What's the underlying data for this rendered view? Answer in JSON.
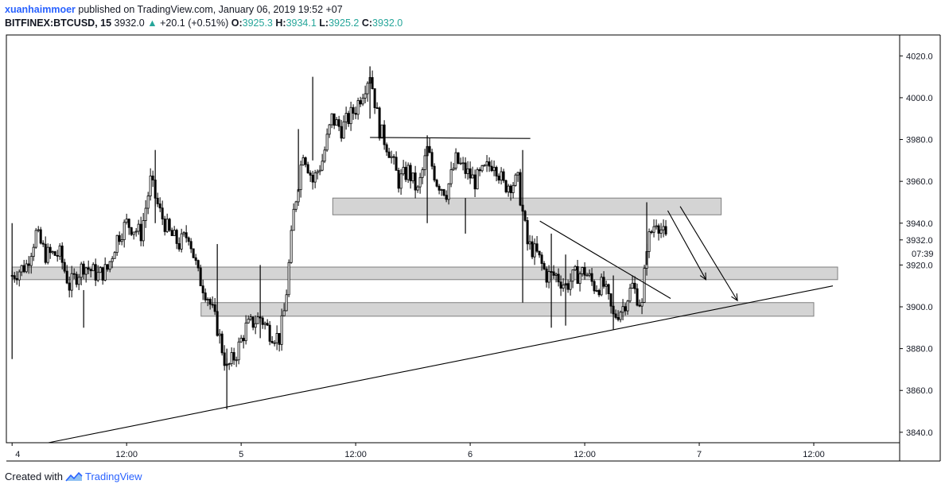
{
  "header": {
    "author": "xuanhaimmoer",
    "published_text": "published on TradingView.com, January 06, 2019 19:52 +07",
    "symbol": "BITFINEX:BTCUSD, 15",
    "last_price": "3932.0",
    "change_arrow": "▲",
    "change": "+20.1 (+0.51%)",
    "ohlc": {
      "o_label": "O:",
      "o_value": "3925.3",
      "h_label": "H:",
      "h_value": "3934.1",
      "l_label": "L:",
      "l_value": "3925.2",
      "c_label": "C:",
      "c_value": "3932.0"
    }
  },
  "footer": {
    "created_with": "Created with",
    "brand": "TradingView",
    "brand_icon": "tradingview-logo-icon"
  },
  "colors": {
    "candle": "#000000",
    "zone_fill": "#d4d4d4",
    "zone_border": "#7f7f7f",
    "up_text": "#26a69a",
    "brand": "#2962ff"
  },
  "chart_data": {
    "type": "candlestick",
    "symbol": "BITFINEX:BTCUSD",
    "interval": "15",
    "ylim": [
      3835,
      4030
    ],
    "y_ticks": [
      "4020.0",
      "4000.0",
      "3980.0",
      "3960.0",
      "3940.0",
      "3920.0",
      "3900.0",
      "3880.0",
      "3860.0",
      "3840.0"
    ],
    "y_tick_values": [
      4020,
      4000,
      3980,
      3960,
      3940,
      3920,
      3900,
      3880,
      3860,
      3840
    ],
    "x_ticks": [
      "4",
      "12:00",
      "5",
      "12:00",
      "6",
      "12:00",
      "7",
      "12:00"
    ],
    "x_tick_hours": [
      0,
      12,
      24,
      36,
      48,
      60,
      72,
      84
    ],
    "xlim_hours": [
      -0.6,
      93
    ],
    "last_price_label": "3932.0",
    "countdown_label": "07:39",
    "price_path": [
      [
        0,
        3915
      ],
      [
        1.5,
        3920
      ],
      [
        2.5,
        3935
      ],
      [
        3.5,
        3925
      ],
      [
        5,
        3925
      ],
      [
        6,
        3910
      ],
      [
        7.5,
        3920
      ],
      [
        9,
        3915
      ],
      [
        10,
        3918
      ],
      [
        11,
        3933
      ],
      [
        12,
        3940
      ],
      [
        13.5,
        3935
      ],
      [
        14.5,
        3960
      ],
      [
        15.5,
        3945
      ],
      [
        16.5,
        3935
      ],
      [
        17.5,
        3930
      ],
      [
        18.5,
        3935
      ],
      [
        19.5,
        3915
      ],
      [
        20.5,
        3905
      ],
      [
        21.5,
        3890
      ],
      [
        22.5,
        3870
      ],
      [
        23.5,
        3878
      ],
      [
        24.5,
        3890
      ],
      [
        26,
        3895
      ],
      [
        27,
        3888
      ],
      [
        28,
        3885
      ],
      [
        28.6,
        3900
      ],
      [
        29.5,
        3945
      ],
      [
        30.5,
        3975
      ],
      [
        31.5,
        3960
      ],
      [
        32.5,
        3970
      ],
      [
        33.5,
        3990
      ],
      [
        34.5,
        3985
      ],
      [
        36,
        3995
      ],
      [
        37.5,
        4012
      ],
      [
        38.5,
        3985
      ],
      [
        39.5,
        3975
      ],
      [
        40.5,
        3960
      ],
      [
        41.5,
        3965
      ],
      [
        42.5,
        3955
      ],
      [
        43.5,
        3975
      ],
      [
        44.5,
        3960
      ],
      [
        45.5,
        3955
      ],
      [
        46.5,
        3970
      ],
      [
        47.5,
        3965
      ],
      [
        48.5,
        3960
      ],
      [
        49.5,
        3965
      ],
      [
        50.5,
        3970
      ],
      [
        51.5,
        3958
      ],
      [
        53,
        3960
      ],
      [
        54,
        3930
      ],
      [
        55,
        3925
      ],
      [
        56,
        3915
      ],
      [
        57,
        3915
      ],
      [
        58,
        3910
      ],
      [
        59,
        3915
      ],
      [
        60,
        3917
      ],
      [
        61,
        3910
      ],
      [
        62,
        3910
      ],
      [
        63,
        3895
      ],
      [
        64,
        3900
      ],
      [
        65,
        3910
      ],
      [
        66,
        3900
      ],
      [
        66.5,
        3930
      ],
      [
        67.5,
        3942
      ],
      [
        68.5,
        3932
      ]
    ],
    "spikes": [
      [
        0,
        3940,
        3875
      ],
      [
        7.5,
        3908,
        3890
      ],
      [
        15,
        3975,
        3940
      ],
      [
        21.5,
        3930,
        3895
      ],
      [
        22.5,
        3880,
        3851
      ],
      [
        26,
        3920,
        3885
      ],
      [
        30,
        3985,
        3955
      ],
      [
        31.5,
        4010,
        3970
      ],
      [
        37.5,
        4015,
        3990
      ],
      [
        43.5,
        3982,
        3940
      ],
      [
        47.5,
        3952,
        3935
      ],
      [
        53.5,
        3975,
        3902
      ],
      [
        56.5,
        3935,
        3890
      ],
      [
        58,
        3925,
        3891
      ],
      [
        63,
        3915,
        3889
      ],
      [
        66.5,
        3950,
        3920
      ]
    ],
    "zones": [
      {
        "h_start": 33.6,
        "h_end": 74.3,
        "p_low": 3944,
        "p_high": 3952
      },
      {
        "h_start": 0,
        "h_end": 86.5,
        "p_low": 3913,
        "p_high": 3919
      },
      {
        "h_start": 19.8,
        "h_end": 84,
        "p_low": 3895.5,
        "p_high": 3902
      }
    ],
    "lines": [
      {
        "h1": 3.8,
        "p1": 3835,
        "h2": 86,
        "p2": 3910
      },
      {
        "h1": 37.5,
        "p1": 3981,
        "h2": 54.3,
        "p2": 3980.5
      },
      {
        "h1": 55.3,
        "p1": 3941,
        "h2": 69,
        "p2": 3904
      }
    ],
    "arrows": [
      {
        "h1": 68.7,
        "p1": 3946,
        "h2": 72.7,
        "p2": 3913
      },
      {
        "h1": 70,
        "p1": 3948,
        "h2": 76,
        "p2": 3903
      }
    ]
  }
}
